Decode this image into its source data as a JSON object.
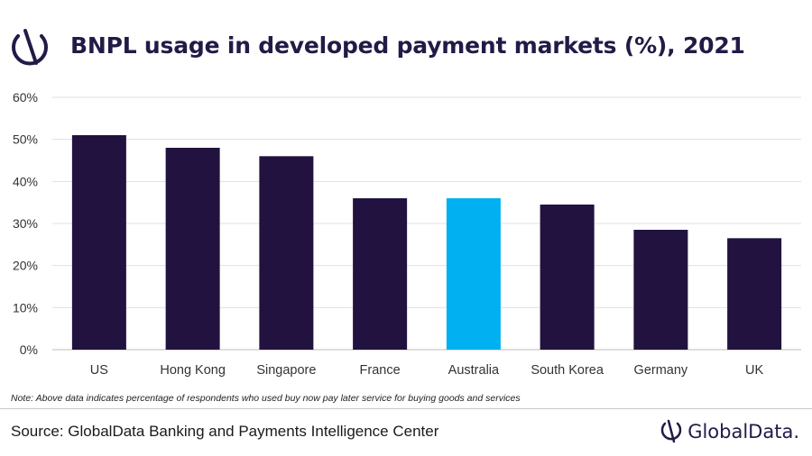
{
  "title": "BNPL usage in developed payment markets (%), 2021",
  "note": "Note: Above data indicates percentage of respondents who used buy now pay later service for buying goods and services",
  "source": "Source: GlobalData Banking and Payments Intelligence Center",
  "brand": "GlobalData.",
  "icons": {
    "logo": "globaldata-logo-icon"
  },
  "colors": {
    "bar": "#21123f",
    "highlight": "#00b0f0",
    "grid": "#e0e0e0",
    "title": "#231a47"
  },
  "chart_data": {
    "type": "bar",
    "categories": [
      "US",
      "Hong Kong",
      "Singapore",
      "France",
      "Australia",
      "South Korea",
      "Germany",
      "UK"
    ],
    "values": [
      51,
      48,
      46,
      36,
      36,
      34.5,
      28.5,
      26.5
    ],
    "highlighted_category": "Australia",
    "y_ticks": [
      "0%",
      "10%",
      "20%",
      "30%",
      "40%",
      "50%",
      "60%"
    ],
    "ylim": [
      0,
      60
    ],
    "grid": true,
    "xlabel": "",
    "ylabel": ""
  }
}
